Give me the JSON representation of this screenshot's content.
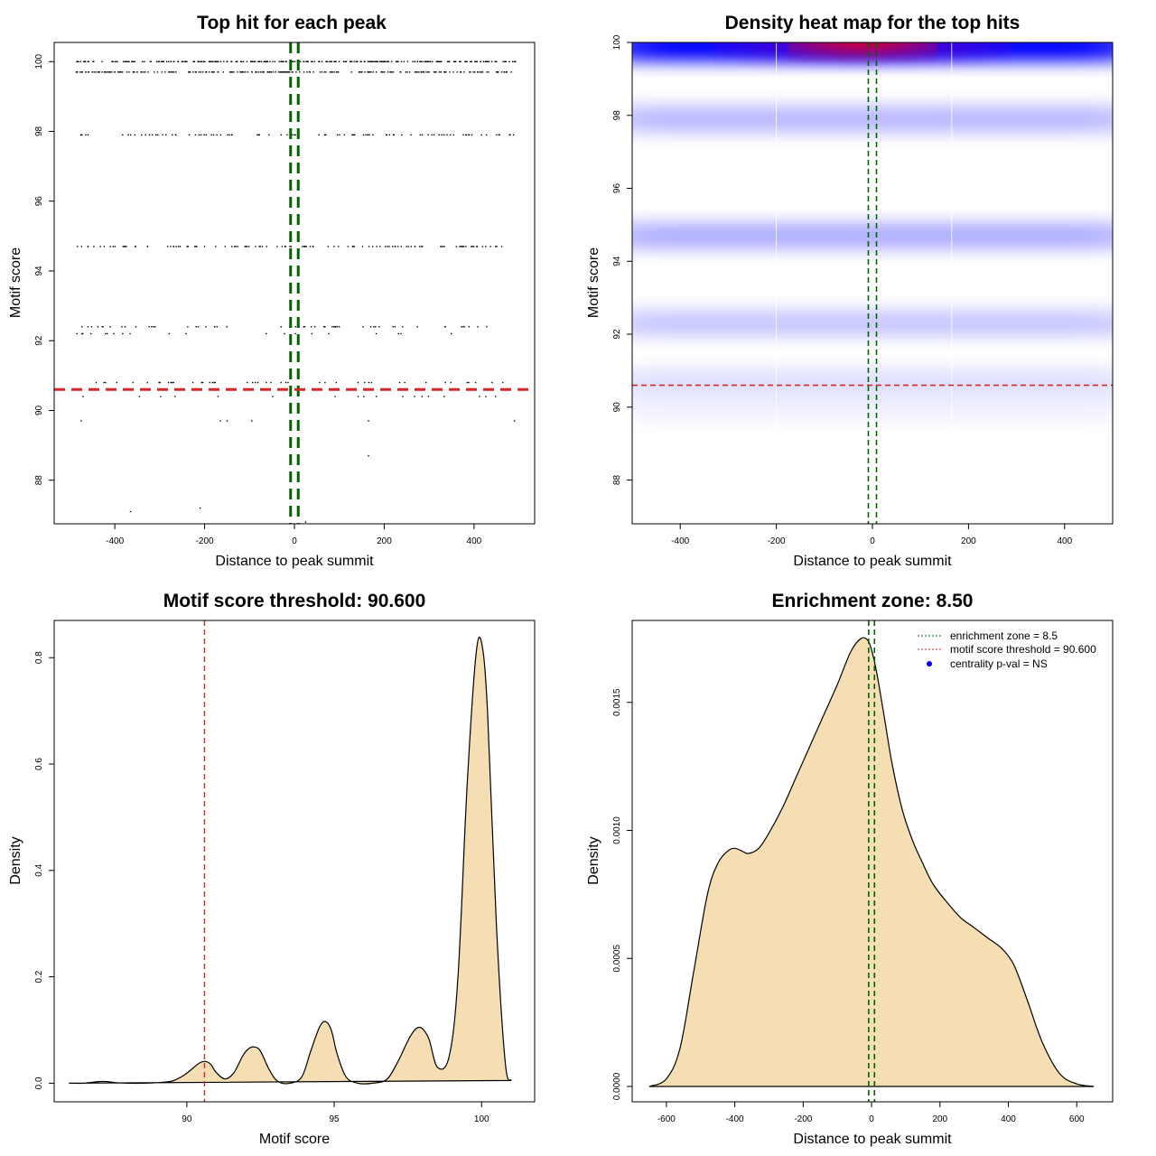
{
  "chart_data": [
    {
      "id": "scatter",
      "type": "scatter",
      "title": "Top hit for each peak",
      "xlabel": "Distance to peak summit",
      "ylabel": "Motif score",
      "xlim": [
        -535,
        535
      ],
      "ylim": [
        86.75,
        100.55
      ],
      "xticks": [
        -400,
        -200,
        0,
        200,
        400
      ],
      "xtick_labels": [
        "-400",
        "-200",
        "0",
        "200",
        "400"
      ],
      "yticks": [
        88,
        90,
        92,
        94,
        96,
        98,
        100
      ],
      "ytick_labels": [
        "88",
        "90",
        "92",
        "94",
        "96",
        "98",
        "100"
      ],
      "score_rows": [
        {
          "score": 100.0,
          "xmin": -490,
          "xmax": 495,
          "count": 300
        },
        {
          "score": 99.7,
          "xmin": -490,
          "xmax": 490,
          "count": 220
        },
        {
          "score": 97.9,
          "xmin": -485,
          "xmax": 490,
          "count": 90
        },
        {
          "score": 94.7,
          "xmin": -485,
          "xmax": 480,
          "count": 110
        },
        {
          "score": 92.4,
          "xmin": -485,
          "xmax": 490,
          "count": 55
        },
        {
          "score": 92.2,
          "xmin": -485,
          "xmax": 495,
          "count": 20
        },
        {
          "score": 90.8,
          "xmin": -465,
          "xmax": 485,
          "count": 45
        },
        {
          "score": 90.4,
          "xmin": -490,
          "xmax": 490,
          "count": 18
        }
      ],
      "points": [
        {
          "x": -475,
          "y": 89.7
        },
        {
          "x": -165,
          "y": 89.7
        },
        {
          "x": -150,
          "y": 89.7
        },
        {
          "x": -95,
          "y": 89.7
        },
        {
          "x": 165,
          "y": 89.7
        },
        {
          "x": 490,
          "y": 89.7
        },
        {
          "x": 165,
          "y": 88.7
        },
        {
          "x": -365,
          "y": 87.1
        },
        {
          "x": -210,
          "y": 87.2
        },
        {
          "x": 25,
          "y": 86.8
        }
      ],
      "vlines": [
        -8.5,
        8.5
      ],
      "vline_color": "#006400",
      "hline": 90.6,
      "hline_color": "#d62728"
    },
    {
      "id": "heatmap",
      "type": "heatmap",
      "title": "Density heat map for the top hits",
      "xlabel": "Distance to peak summit",
      "ylabel": "Motif score",
      "xlim": [
        -500,
        500
      ],
      "ylim": [
        86.8,
        100.0
      ],
      "xticks": [
        -400,
        -200,
        0,
        200,
        400
      ],
      "xtick_labels": [
        "-400",
        "-200",
        "0",
        "200",
        "400"
      ],
      "yticks": [
        88,
        90,
        92,
        94,
        96,
        98,
        100
      ],
      "ytick_labels": [
        "88",
        "90",
        "92",
        "94",
        "96",
        "98",
        "100"
      ],
      "bands": [
        {
          "score": 99.9,
          "intensity": 1.0,
          "hot": true
        },
        {
          "score": 97.9,
          "intensity": 0.28,
          "hot": false
        },
        {
          "score": 94.7,
          "intensity": 0.32,
          "hot": false
        },
        {
          "score": 92.3,
          "intensity": 0.22,
          "hot": false
        },
        {
          "score": 90.7,
          "intensity": 0.12,
          "hot": false
        },
        {
          "score": 90.0,
          "intensity": 0.06,
          "hot": false
        }
      ],
      "vlines": [
        -8.5,
        8.5
      ],
      "vline_color": "#006400",
      "hline": 90.6,
      "hline_color": "#d62728",
      "low_color": "#ffffff",
      "mid_color": "#0000ff",
      "high_color": "#ff0000"
    },
    {
      "id": "score_density",
      "type": "area",
      "title": "Motif score threshold: 90.600",
      "xlabel": "Motif score",
      "ylabel": "Density",
      "xlim": [
        85.5,
        101.8
      ],
      "ylim": [
        -0.035,
        0.87
      ],
      "xticks": [
        90,
        95,
        100
      ],
      "xtick_labels": [
        "90",
        "95",
        "100"
      ],
      "yticks": [
        0.0,
        0.2,
        0.4,
        0.6,
        0.8
      ],
      "ytick_labels": [
        "0.0",
        "0.2",
        "0.4",
        "0.6",
        "0.8"
      ],
      "x": [
        86.0,
        86.5,
        87.0,
        87.3,
        87.6,
        88.0,
        88.5,
        89.0,
        89.5,
        89.9,
        90.2,
        90.4,
        90.6,
        90.8,
        91.0,
        91.3,
        91.6,
        91.9,
        92.1,
        92.3,
        92.5,
        92.8,
        93.1,
        93.5,
        93.9,
        94.2,
        94.5,
        94.7,
        94.9,
        95.1,
        95.4,
        95.8,
        96.3,
        96.8,
        97.2,
        97.6,
        97.9,
        98.2,
        98.5,
        98.9,
        99.2,
        99.5,
        99.8,
        100.0,
        100.2,
        100.5,
        100.8,
        101.0
      ],
      "y": [
        0.0,
        0.0,
        0.003,
        0.003,
        0.001,
        0.0,
        0.0,
        0.001,
        0.004,
        0.015,
        0.028,
        0.037,
        0.041,
        0.036,
        0.02,
        0.008,
        0.02,
        0.052,
        0.065,
        0.068,
        0.06,
        0.025,
        0.003,
        0.0,
        0.012,
        0.06,
        0.105,
        0.116,
        0.1,
        0.055,
        0.012,
        0.0,
        0.0,
        0.008,
        0.045,
        0.09,
        0.105,
        0.085,
        0.03,
        0.05,
        0.2,
        0.55,
        0.8,
        0.828,
        0.7,
        0.3,
        0.04,
        0.005
      ],
      "fill_color": "#f5deb3",
      "vline": 90.6,
      "vline_color": "#d62728"
    },
    {
      "id": "distance_density",
      "type": "area",
      "title": "Enrichment zone: 8.50",
      "xlabel": "Distance to peak summit",
      "ylabel": "Density",
      "xlim": [
        -700,
        705
      ],
      "ylim": [
        -6e-05,
        0.00182
      ],
      "xticks": [
        -600,
        -400,
        -200,
        0,
        200,
        400,
        600
      ],
      "xtick_labels": [
        "-600",
        "-400",
        "-200",
        "0",
        "200",
        "400",
        "600"
      ],
      "yticks": [
        0.0,
        0.0005,
        0.001,
        0.0015
      ],
      "ytick_labels": [
        "0.0000",
        "0.0005",
        "0.0010",
        "0.0015"
      ],
      "x": [
        -650,
        -600,
        -560,
        -520,
        -480,
        -450,
        -420,
        -400,
        -380,
        -360,
        -330,
        -300,
        -260,
        -220,
        -180,
        -140,
        -100,
        -60,
        -30,
        -10,
        5,
        20,
        40,
        60,
        90,
        120,
        150,
        180,
        220,
        260,
        300,
        340,
        380,
        410,
        430,
        460,
        500,
        550,
        600,
        650
      ],
      "y": [
        0.0,
        3e-05,
        0.00015,
        0.00045,
        0.00075,
        0.00087,
        0.00092,
        0.00093,
        0.00092,
        0.00091,
        0.00093,
        0.00099,
        0.00109,
        0.00121,
        0.00133,
        0.00145,
        0.00157,
        0.0017,
        0.00175,
        0.00174,
        0.00168,
        0.00158,
        0.00142,
        0.00126,
        0.00108,
        0.00096,
        0.00087,
        0.00079,
        0.00072,
        0.00066,
        0.00062,
        0.00058,
        0.00054,
        0.00049,
        0.00043,
        0.00032,
        0.00017,
        5e-05,
        1e-05,
        0.0
      ],
      "fill_color": "#f5deb3",
      "vlines": [
        -8.5,
        8.5
      ],
      "vline_color": "#006400",
      "legend": [
        {
          "label": "enrichment zone = 8.5",
          "color": "#006400",
          "kind": "line"
        },
        {
          "label": "motif score threshold = 90.600",
          "color": "#d62728",
          "kind": "line"
        },
        {
          "label": "centrality p-val = NS",
          "color": "#0000ff",
          "kind": "dot"
        }
      ],
      "legend_position": "top-right"
    }
  ]
}
